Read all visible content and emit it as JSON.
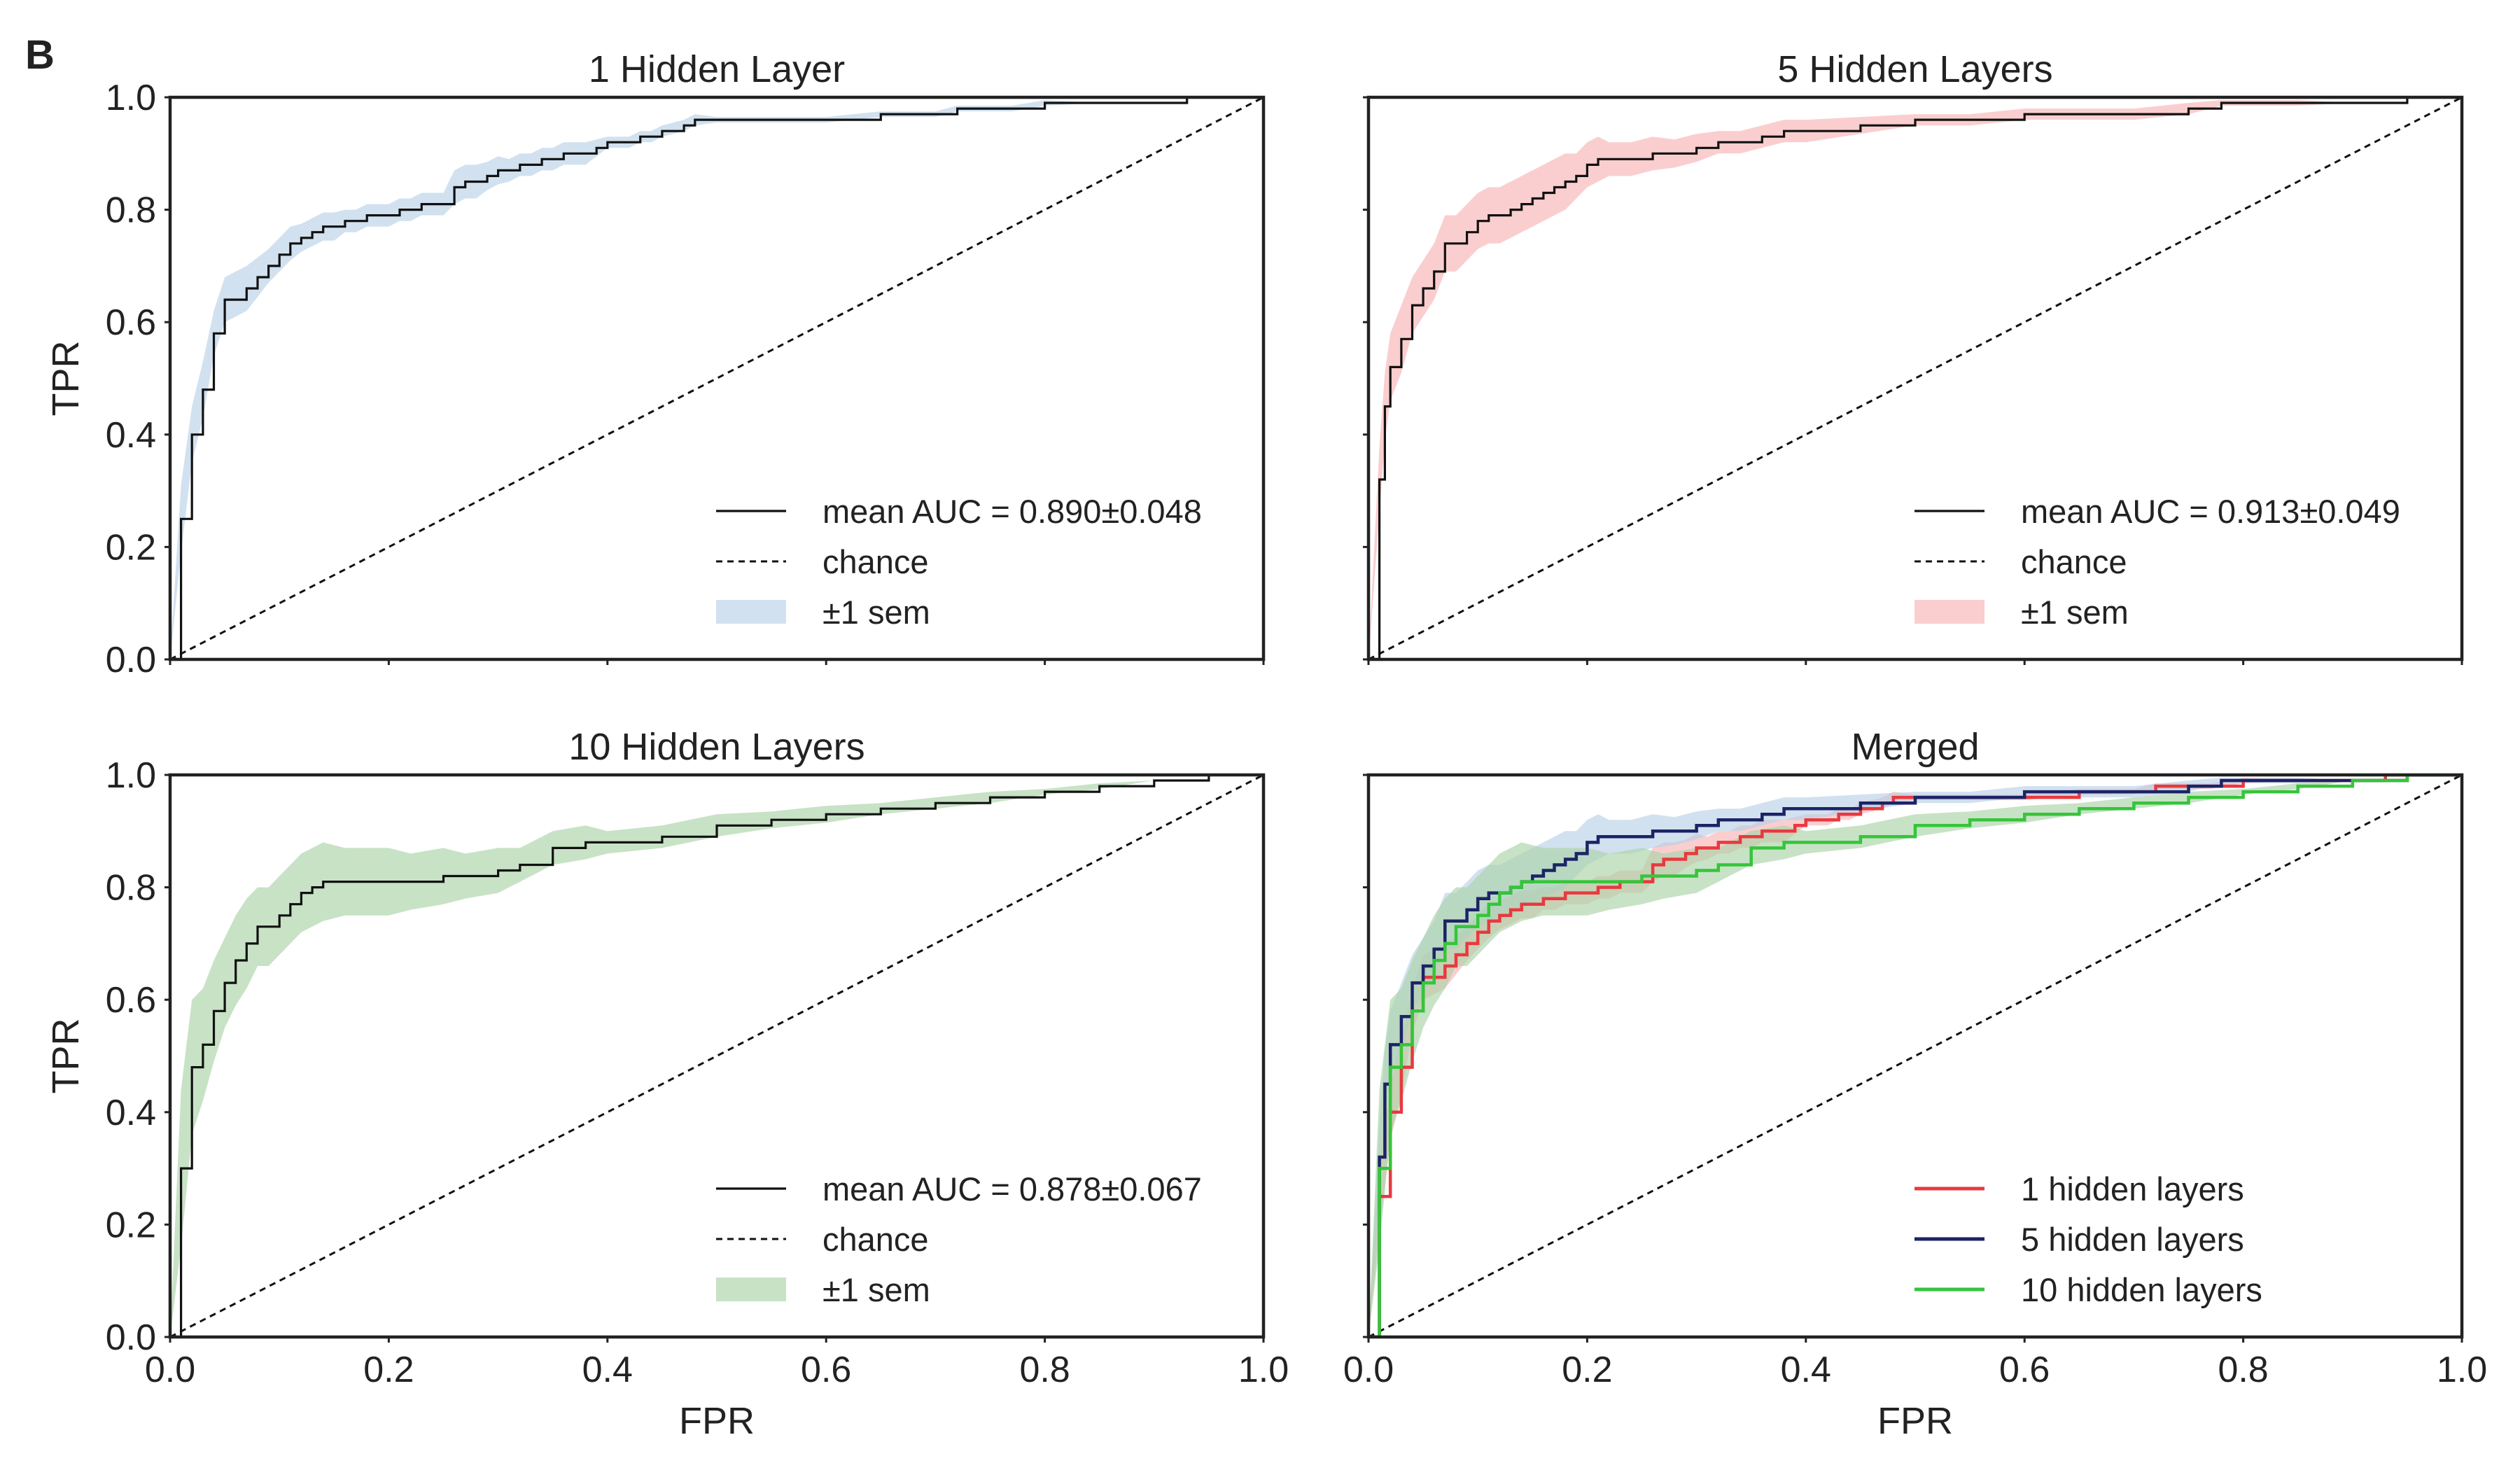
{
  "figure": {
    "panel_letter": "B",
    "colors": {
      "blue_band": "#b9d1e7",
      "red_band": "#f8b3b6",
      "green_band": "#abd3a8",
      "red_line": "#e8393f",
      "navy_line": "#1c2366",
      "green_line": "#35c53a",
      "mean_line": "#111111"
    }
  },
  "chart_data": [
    {
      "id": "p1",
      "type": "line",
      "title": "1 Hidden Layer",
      "xlabel": "",
      "ylabel": "TPR",
      "xlim": [
        0,
        1
      ],
      "ylim": [
        0,
        1
      ],
      "xticks": [
        "0.0",
        "0.2",
        "0.4",
        "0.6",
        "0.8",
        "1.0"
      ],
      "yticks": [
        "0.0",
        "0.2",
        "0.4",
        "0.6",
        "0.8",
        "1.0"
      ],
      "show_xticklabels": false,
      "show_yticklabels": true,
      "legend_position": "lower-right",
      "legend": [
        "mean AUC = 0.890±0.048",
        "chance",
        "±1 sem"
      ],
      "band_color": "#b9d1e7",
      "series": [
        {
          "name": "mean AUC = 0.890±0.048",
          "color": "#111111",
          "x": [
            0,
            0.01,
            0.02,
            0.03,
            0.04,
            0.05,
            0.07,
            0.08,
            0.09,
            0.1,
            0.11,
            0.12,
            0.13,
            0.14,
            0.15,
            0.16,
            0.17,
            0.18,
            0.19,
            0.2,
            0.21,
            0.22,
            0.23,
            0.24,
            0.25,
            0.26,
            0.27,
            0.28,
            0.29,
            0.3,
            0.31,
            0.32,
            0.33,
            0.34,
            0.35,
            0.36,
            0.37,
            0.38,
            0.39,
            0.4,
            0.41,
            0.42,
            0.43,
            0.44,
            0.45,
            0.47,
            0.48,
            0.5,
            0.55,
            0.6,
            0.65,
            0.7,
            0.72,
            0.75,
            0.77,
            0.8,
            0.85,
            0.9,
            0.93,
            0.95,
            1.0
          ],
          "y": [
            0,
            0.25,
            0.4,
            0.48,
            0.58,
            0.64,
            0.66,
            0.68,
            0.7,
            0.72,
            0.74,
            0.75,
            0.76,
            0.77,
            0.77,
            0.78,
            0.78,
            0.79,
            0.79,
            0.79,
            0.8,
            0.8,
            0.81,
            0.81,
            0.81,
            0.84,
            0.85,
            0.85,
            0.86,
            0.87,
            0.87,
            0.88,
            0.88,
            0.89,
            0.89,
            0.9,
            0.9,
            0.9,
            0.91,
            0.92,
            0.92,
            0.92,
            0.93,
            0.93,
            0.94,
            0.95,
            0.96,
            0.96,
            0.96,
            0.96,
            0.97,
            0.97,
            0.98,
            0.98,
            0.98,
            0.99,
            0.99,
            0.99,
            1.0,
            1.0,
            1.0
          ],
          "sem": [
            0,
            0.06,
            0.05,
            0.05,
            0.04,
            0.04,
            0.04,
            0.035,
            0.03,
            0.03,
            0.03,
            0.025,
            0.025,
            0.025,
            0.025,
            0.02,
            0.02,
            0.02,
            0.02,
            0.02,
            0.02,
            0.02,
            0.02,
            0.02,
            0.02,
            0.03,
            0.03,
            0.03,
            0.025,
            0.025,
            0.02,
            0.02,
            0.02,
            0.02,
            0.02,
            0.02,
            0.02,
            0.02,
            0.015,
            0.01,
            0.01,
            0.01,
            0.01,
            0.01,
            0.01,
            0.01,
            0.01,
            0.005,
            0.005,
            0.005,
            0.005,
            0.005,
            0.005,
            0.005,
            0.005,
            0.005,
            0,
            0,
            0,
            0,
            0
          ]
        },
        {
          "name": "chance",
          "x": [
            0,
            1
          ],
          "y": [
            0,
            1
          ]
        }
      ]
    },
    {
      "id": "p2",
      "type": "line",
      "title": "5 Hidden Layers",
      "xlabel": "",
      "ylabel": "",
      "xlim": [
        0,
        1
      ],
      "ylim": [
        0,
        1
      ],
      "xticks": [
        "0.0",
        "0.2",
        "0.4",
        "0.6",
        "0.8",
        "1.0"
      ],
      "yticks": [
        "0.0",
        "0.2",
        "0.4",
        "0.6",
        "0.8",
        "1.0"
      ],
      "show_xticklabels": false,
      "show_yticklabels": false,
      "legend_position": "lower-right",
      "legend": [
        "mean AUC = 0.913±0.049",
        "chance",
        "±1 sem"
      ],
      "band_color": "#f8b3b6",
      "series": [
        {
          "name": "mean AUC = 0.913±0.049",
          "color": "#111111",
          "x": [
            0,
            0.01,
            0.015,
            0.02,
            0.03,
            0.04,
            0.05,
            0.06,
            0.07,
            0.08,
            0.09,
            0.1,
            0.11,
            0.12,
            0.13,
            0.14,
            0.15,
            0.16,
            0.17,
            0.18,
            0.19,
            0.2,
            0.21,
            0.22,
            0.24,
            0.26,
            0.28,
            0.3,
            0.32,
            0.34,
            0.36,
            0.38,
            0.4,
            0.45,
            0.5,
            0.55,
            0.6,
            0.65,
            0.7,
            0.75,
            0.78,
            0.85,
            0.9,
            0.95,
            1.0
          ],
          "y": [
            0,
            0.32,
            0.45,
            0.52,
            0.57,
            0.63,
            0.66,
            0.69,
            0.74,
            0.74,
            0.76,
            0.78,
            0.79,
            0.79,
            0.8,
            0.81,
            0.82,
            0.83,
            0.84,
            0.85,
            0.86,
            0.88,
            0.89,
            0.89,
            0.89,
            0.9,
            0.9,
            0.91,
            0.92,
            0.92,
            0.93,
            0.94,
            0.94,
            0.95,
            0.96,
            0.96,
            0.97,
            0.97,
            0.97,
            0.98,
            0.99,
            0.99,
            0.99,
            1.0,
            1.0
          ],
          "sem": [
            0,
            0.06,
            0.06,
            0.06,
            0.06,
            0.05,
            0.05,
            0.05,
            0.05,
            0.05,
            0.05,
            0.05,
            0.05,
            0.05,
            0.05,
            0.05,
            0.05,
            0.05,
            0.05,
            0.05,
            0.04,
            0.04,
            0.04,
            0.03,
            0.03,
            0.03,
            0.025,
            0.025,
            0.02,
            0.02,
            0.02,
            0.02,
            0.02,
            0.015,
            0.01,
            0.01,
            0.01,
            0.01,
            0.01,
            0.01,
            0.005,
            0.005,
            0,
            0,
            0
          ]
        },
        {
          "name": "chance",
          "x": [
            0,
            1
          ],
          "y": [
            0,
            1
          ]
        }
      ]
    },
    {
      "id": "p3",
      "type": "line",
      "title": "10 Hidden Layers",
      "xlabel": "FPR",
      "ylabel": "TPR",
      "xlim": [
        0,
        1
      ],
      "ylim": [
        0,
        1
      ],
      "xticks": [
        "0.0",
        "0.2",
        "0.4",
        "0.6",
        "0.8",
        "1.0"
      ],
      "yticks": [
        "0.0",
        "0.2",
        "0.4",
        "0.6",
        "0.8",
        "1.0"
      ],
      "show_xticklabels": true,
      "show_yticklabels": true,
      "legend_position": "lower-right",
      "legend": [
        "mean AUC = 0.878±0.067",
        "chance",
        "±1 sem"
      ],
      "band_color": "#abd3a8",
      "series": [
        {
          "name": "mean AUC = 0.878±0.067",
          "color": "#111111",
          "x": [
            0,
            0.01,
            0.02,
            0.03,
            0.04,
            0.05,
            0.06,
            0.07,
            0.08,
            0.09,
            0.1,
            0.11,
            0.12,
            0.13,
            0.14,
            0.16,
            0.18,
            0.2,
            0.22,
            0.25,
            0.27,
            0.3,
            0.32,
            0.35,
            0.38,
            0.4,
            0.45,
            0.5,
            0.55,
            0.6,
            0.65,
            0.7,
            0.75,
            0.8,
            0.85,
            0.9,
            0.95,
            1.0
          ],
          "y": [
            0,
            0.3,
            0.48,
            0.52,
            0.58,
            0.63,
            0.67,
            0.7,
            0.73,
            0.73,
            0.75,
            0.77,
            0.79,
            0.8,
            0.81,
            0.81,
            0.81,
            0.81,
            0.81,
            0.82,
            0.82,
            0.83,
            0.84,
            0.87,
            0.88,
            0.88,
            0.89,
            0.91,
            0.92,
            0.93,
            0.94,
            0.95,
            0.96,
            0.97,
            0.98,
            0.99,
            1.0,
            1.0
          ],
          "sem": [
            0,
            0.14,
            0.12,
            0.1,
            0.09,
            0.08,
            0.08,
            0.08,
            0.07,
            0.07,
            0.07,
            0.07,
            0.07,
            0.07,
            0.07,
            0.06,
            0.06,
            0.06,
            0.05,
            0.05,
            0.04,
            0.04,
            0.03,
            0.03,
            0.03,
            0.02,
            0.02,
            0.02,
            0.015,
            0.015,
            0.01,
            0.01,
            0.01,
            0.005,
            0.005,
            0,
            0,
            0
          ]
        },
        {
          "name": "chance",
          "x": [
            0,
            1
          ],
          "y": [
            0,
            1
          ]
        }
      ]
    },
    {
      "id": "p4",
      "type": "line",
      "title": "Merged",
      "xlabel": "FPR",
      "ylabel": "",
      "xlim": [
        0,
        1
      ],
      "ylim": [
        0,
        1
      ],
      "xticks": [
        "0.0",
        "0.2",
        "0.4",
        "0.6",
        "0.8",
        "1.0"
      ],
      "yticks": [
        "0.0",
        "0.2",
        "0.4",
        "0.6",
        "0.8",
        "1.0"
      ],
      "show_xticklabels": true,
      "show_yticklabels": false,
      "legend_position": "lower-right",
      "legend": [
        "1 hidden layers",
        "5 hidden layers",
        "10 hidden layers"
      ],
      "series": [
        {
          "name": "1 hidden layers",
          "color": "#e8393f",
          "band": "#f8b3b6",
          "ref": 0
        },
        {
          "name": "5 hidden layers",
          "color": "#1c2366",
          "band": "#b9d1e7",
          "ref": 1
        },
        {
          "name": "10 hidden layers",
          "color": "#35c53a",
          "band": "#abd3a8",
          "ref": 2
        },
        {
          "name": "chance",
          "x": [
            0,
            1
          ],
          "y": [
            0,
            1
          ]
        }
      ]
    }
  ]
}
